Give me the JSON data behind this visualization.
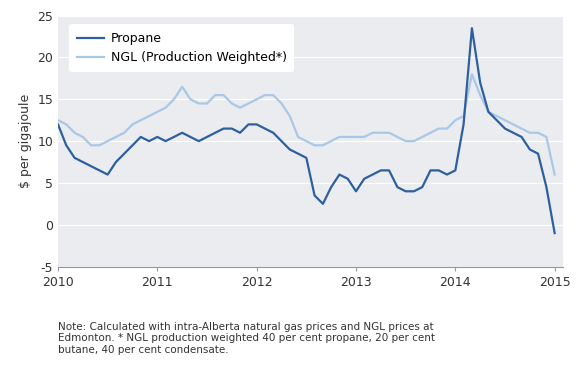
{
  "ylabel": "$ per gigajoule",
  "note_line1": "Note: Calculated with intra-Alberta natural gas prices and NGL prices at",
  "note_line2": "Edmonton. * NGL production weighted 40 per cent propane, 20 per cent",
  "note_line3": "butane, 40 per cent condensate.",
  "ylim": [
    -5,
    25
  ],
  "yticks": [
    -5,
    0,
    5,
    10,
    15,
    20,
    25
  ],
  "xlim": [
    2010.0,
    2015.08
  ],
  "xticks": [
    2010,
    2011,
    2012,
    2013,
    2014,
    2015
  ],
  "bg_color": "#e8eaed",
  "plot_bg_color": "#eaecef",
  "propane_color": "#2e5f9e",
  "ngl_color": "#a8c8e8",
  "line_width": 1.6,
  "propane_label": "Propane",
  "ngl_label": "NGL (Production Weighted*)",
  "propane_x": [
    2010.0,
    2010.083,
    2010.167,
    2010.25,
    2010.333,
    2010.417,
    2010.5,
    2010.583,
    2010.667,
    2010.75,
    2010.833,
    2010.917,
    2011.0,
    2011.083,
    2011.167,
    2011.25,
    2011.333,
    2011.417,
    2011.5,
    2011.583,
    2011.667,
    2011.75,
    2011.833,
    2011.917,
    2012.0,
    2012.083,
    2012.167,
    2012.25,
    2012.333,
    2012.417,
    2012.5,
    2012.583,
    2012.667,
    2012.75,
    2012.833,
    2012.917,
    2013.0,
    2013.083,
    2013.167,
    2013.25,
    2013.333,
    2013.417,
    2013.5,
    2013.583,
    2013.667,
    2013.75,
    2013.833,
    2013.917,
    2014.0,
    2014.083,
    2014.167,
    2014.25,
    2014.333,
    2014.417,
    2014.5,
    2014.583,
    2014.667,
    2014.75,
    2014.833,
    2014.917,
    2015.0
  ],
  "propane_y": [
    12.0,
    9.5,
    8.0,
    7.5,
    7.0,
    6.5,
    6.0,
    7.5,
    8.5,
    9.5,
    10.5,
    10.0,
    10.5,
    10.0,
    10.5,
    11.0,
    10.5,
    10.0,
    10.5,
    11.0,
    11.5,
    11.5,
    11.0,
    12.0,
    12.0,
    11.5,
    11.0,
    10.0,
    9.0,
    8.5,
    8.0,
    3.5,
    2.5,
    4.5,
    6.0,
    5.5,
    4.0,
    5.5,
    6.0,
    6.5,
    6.5,
    4.5,
    4.0,
    4.0,
    4.5,
    6.5,
    6.5,
    6.0,
    6.5,
    12.0,
    23.5,
    17.0,
    13.5,
    12.5,
    11.5,
    11.0,
    10.5,
    9.0,
    8.5,
    4.5,
    -1.0
  ],
  "ngl_x": [
    2010.0,
    2010.083,
    2010.167,
    2010.25,
    2010.333,
    2010.417,
    2010.5,
    2010.583,
    2010.667,
    2010.75,
    2010.833,
    2010.917,
    2011.0,
    2011.083,
    2011.167,
    2011.25,
    2011.333,
    2011.417,
    2011.5,
    2011.583,
    2011.667,
    2011.75,
    2011.833,
    2011.917,
    2012.0,
    2012.083,
    2012.167,
    2012.25,
    2012.333,
    2012.417,
    2012.5,
    2012.583,
    2012.667,
    2012.75,
    2012.833,
    2012.917,
    2013.0,
    2013.083,
    2013.167,
    2013.25,
    2013.333,
    2013.417,
    2013.5,
    2013.583,
    2013.667,
    2013.75,
    2013.833,
    2013.917,
    2014.0,
    2014.083,
    2014.167,
    2014.25,
    2014.333,
    2014.417,
    2014.5,
    2014.583,
    2014.667,
    2014.75,
    2014.833,
    2014.917,
    2015.0
  ],
  "ngl_y": [
    12.5,
    12.0,
    11.0,
    10.5,
    9.5,
    9.5,
    10.0,
    10.5,
    11.0,
    12.0,
    12.5,
    13.0,
    13.5,
    14.0,
    15.0,
    16.5,
    15.0,
    14.5,
    14.5,
    15.5,
    15.5,
    14.5,
    14.0,
    14.5,
    15.0,
    15.5,
    15.5,
    14.5,
    13.0,
    10.5,
    10.0,
    9.5,
    9.5,
    10.0,
    10.5,
    10.5,
    10.5,
    10.5,
    11.0,
    11.0,
    11.0,
    10.5,
    10.0,
    10.0,
    10.5,
    11.0,
    11.5,
    11.5,
    12.5,
    13.0,
    18.0,
    15.5,
    13.5,
    13.0,
    12.5,
    12.0,
    11.5,
    11.0,
    11.0,
    10.5,
    6.0
  ]
}
